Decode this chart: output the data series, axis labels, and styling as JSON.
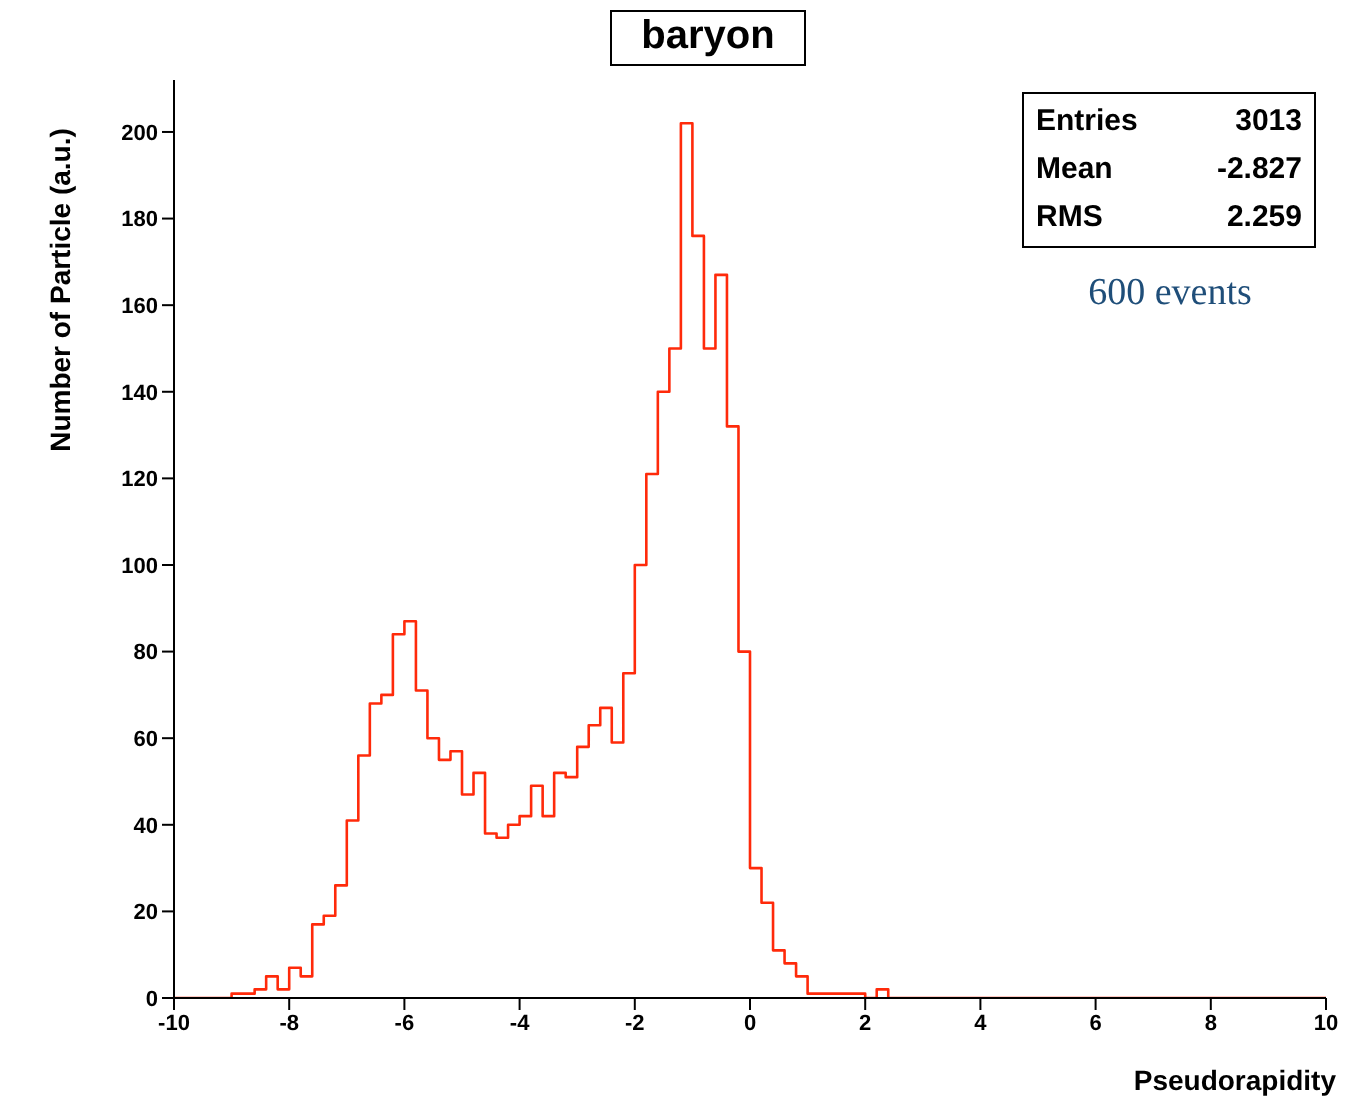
{
  "chart_data": {
    "type": "histogram",
    "title": "baryon",
    "xlabel": "Pseudorapidity",
    "ylabel": "Number of Particle (a.u.)",
    "bins": [
      -10,
      -9.8,
      -9.6,
      -9.4,
      -9.2,
      -9,
      -8.8,
      -8.6,
      -8.4,
      -8.2,
      -8,
      -7.8,
      -7.6,
      -7.4,
      -7.2,
      -7,
      -6.8,
      -6.6,
      -6.4,
      -6.2,
      -6,
      -5.8,
      -5.6,
      -5.4,
      -5.2,
      -5,
      -4.8,
      -4.6,
      -4.4,
      -4.2,
      -4,
      -3.8,
      -3.6,
      -3.4,
      -3.2,
      -3,
      -2.8,
      -2.6,
      -2.4,
      -2.2,
      -2,
      -1.8,
      -1.6,
      -1.4,
      -1.2,
      -1,
      -0.8,
      -0.6,
      -0.4,
      -0.2,
      0,
      0.2,
      0.4,
      0.6,
      0.8,
      1,
      1.2,
      1.4,
      1.6,
      1.8,
      2,
      2.2,
      2.4,
      2.6,
      2.8,
      3,
      3.2,
      3.4,
      3.6,
      3.8,
      4,
      4.2,
      4.4,
      4.6,
      4.8,
      5,
      5.2,
      5.4,
      5.6,
      5.8,
      6,
      6.2,
      6.4,
      6.6,
      6.8,
      7,
      7.2,
      7.4,
      7.6,
      7.8,
      8,
      8.2,
      8.4,
      8.6,
      8.8,
      9,
      9.2,
      9.4,
      9.6,
      9.8,
      10
    ],
    "values": [
      0,
      0,
      0,
      0,
      0,
      1,
      1,
      2,
      5,
      2,
      7,
      5,
      17,
      19,
      26,
      41,
      56,
      68,
      70,
      84,
      87,
      71,
      60,
      55,
      57,
      47,
      52,
      38,
      37,
      40,
      42,
      49,
      42,
      52,
      51,
      58,
      63,
      67,
      59,
      75,
      100,
      121,
      140,
      150,
      202,
      176,
      150,
      167,
      132,
      80,
      30,
      22,
      11,
      8,
      5,
      1,
      1,
      1,
      1,
      1,
      0,
      2,
      0,
      0,
      0,
      0,
      0,
      0,
      0,
      0,
      0,
      0,
      0,
      0,
      0,
      0,
      0,
      0,
      0,
      0,
      0,
      0,
      0,
      0,
      0,
      0,
      0,
      0,
      0,
      0,
      0,
      0,
      0,
      0,
      0,
      0,
      0,
      0,
      0,
      0
    ],
    "color": "#ff2a0a",
    "xlim": [
      -10,
      10
    ],
    "xticks": [
      -10,
      -8,
      -6,
      -4,
      -2,
      0,
      2,
      4,
      6,
      8,
      10
    ],
    "ylim": [
      0,
      212
    ],
    "yticks": [
      0,
      20,
      40,
      60,
      80,
      100,
      120,
      140,
      160,
      180,
      200
    ],
    "annotations": [
      "Entries",
      "3013",
      "Mean",
      "-2.827",
      "RMS",
      "2.259",
      "600 events"
    ]
  }
}
